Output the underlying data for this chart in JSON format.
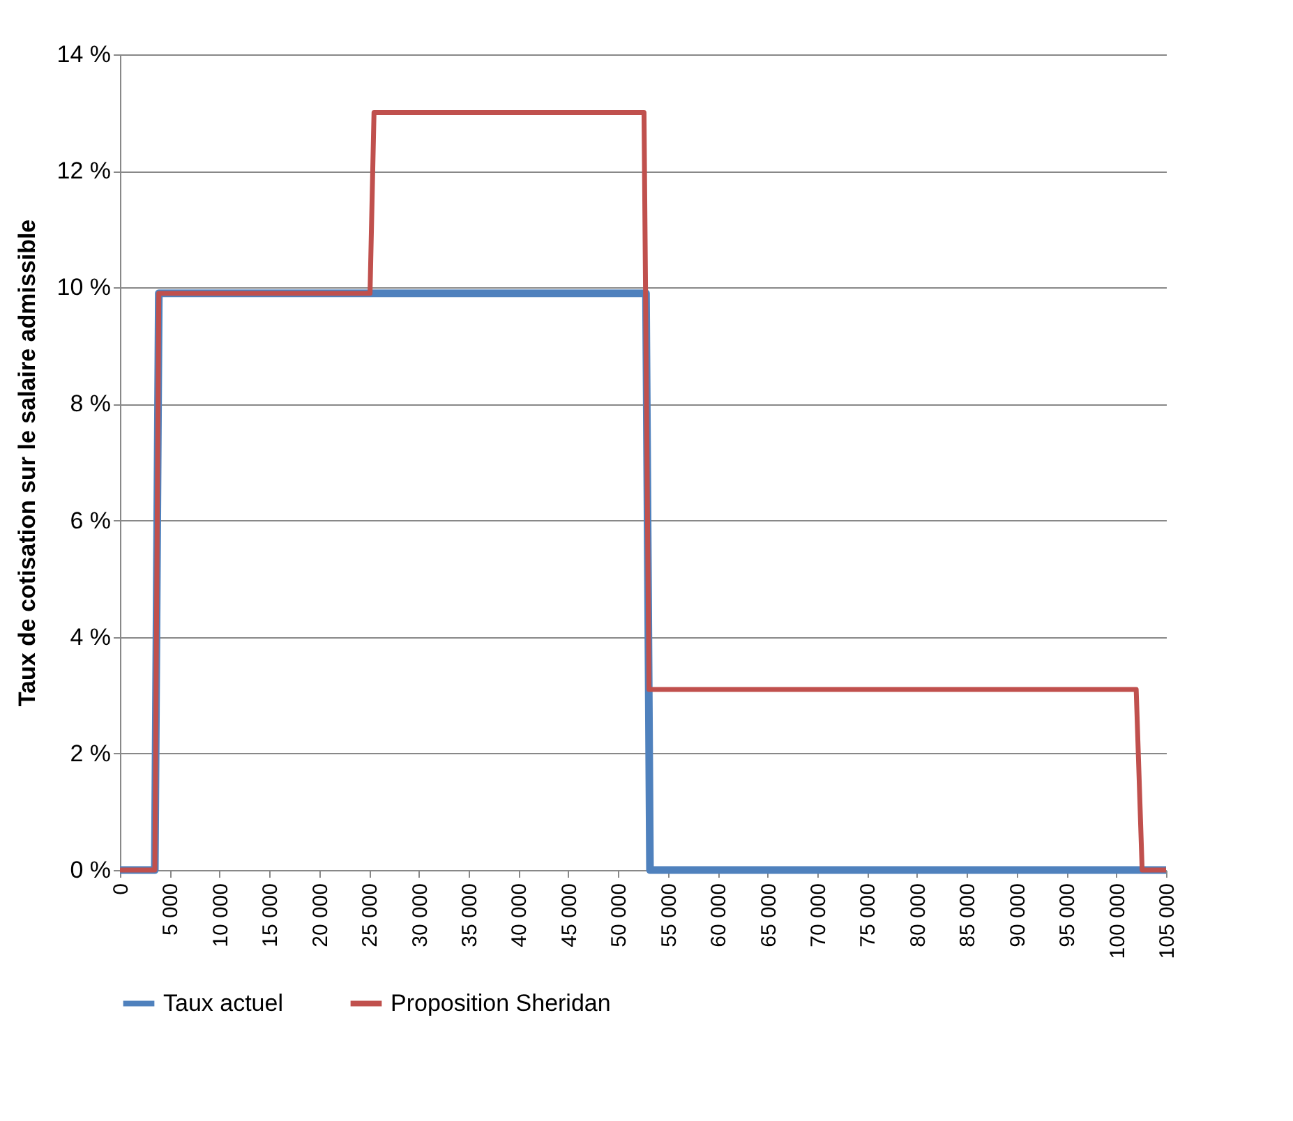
{
  "chart_data": {
    "type": "line",
    "ylabel": "Taux de cotisation sur le salaire admissible",
    "xlim": [
      0,
      105000
    ],
    "xticks": [
      0,
      {
        "value": 5000,
        "label": "5 000"
      },
      {
        "value": 10000,
        "label": "10 000"
      },
      {
        "value": 15000,
        "label": "15 000"
      },
      {
        "value": 20000,
        "label": "20 000"
      },
      {
        "value": 25000,
        "label": "25 000"
      },
      {
        "value": 30000,
        "label": "30 000"
      },
      {
        "value": 35000,
        "label": "35 000"
      },
      {
        "value": 40000,
        "label": "40 000"
      },
      {
        "value": 45000,
        "label": "45 000"
      },
      {
        "value": 50000,
        "label": "50 000"
      },
      {
        "value": 55000,
        "label": "55 000"
      },
      {
        "value": 60000,
        "label": "60 000"
      },
      {
        "value": 65000,
        "label": "65 000"
      },
      {
        "value": 70000,
        "label": "70 000"
      },
      {
        "value": 75000,
        "label": "75 000"
      },
      {
        "value": 80000,
        "label": "80 000"
      },
      {
        "value": 85000,
        "label": "85 000"
      },
      {
        "value": 90000,
        "label": "90 000"
      },
      {
        "value": 95000,
        "label": "95 000"
      },
      {
        "value": 100000,
        "label": "100 000"
      },
      {
        "value": 105000,
        "label": "105 000"
      }
    ],
    "ylim": [
      0,
      14
    ],
    "yticks": [
      {
        "value": 0,
        "label": "0 %"
      },
      {
        "value": 2,
        "label": "2 %"
      },
      {
        "value": 4,
        "label": "4 %"
      },
      {
        "value": 6,
        "label": "6 %"
      },
      {
        "value": 8,
        "label": "8 %"
      },
      {
        "value": 10,
        "label": "10 %"
      },
      {
        "value": 12,
        "label": "12 %"
      },
      {
        "value": 14,
        "label": "14 %"
      }
    ],
    "grid": "y",
    "legend": "bottom",
    "line_style": "solid",
    "marker": "none",
    "series": [
      {
        "name": "Taux actuel",
        "color": "#4f81bd",
        "x": [
          0,
          3500,
          3900,
          52800,
          53200,
          105000
        ],
        "values": [
          0,
          0,
          9.9,
          9.9,
          0,
          0
        ]
      },
      {
        "name": "Proposition Sheridan",
        "color": "#c0504d",
        "x": [
          0,
          3500,
          3900,
          25100,
          25500,
          52600,
          53100,
          102000,
          102600,
          105000
        ],
        "values": [
          0,
          0,
          9.9,
          9.9,
          13,
          13,
          3.1,
          3.1,
          0,
          0
        ]
      }
    ]
  }
}
